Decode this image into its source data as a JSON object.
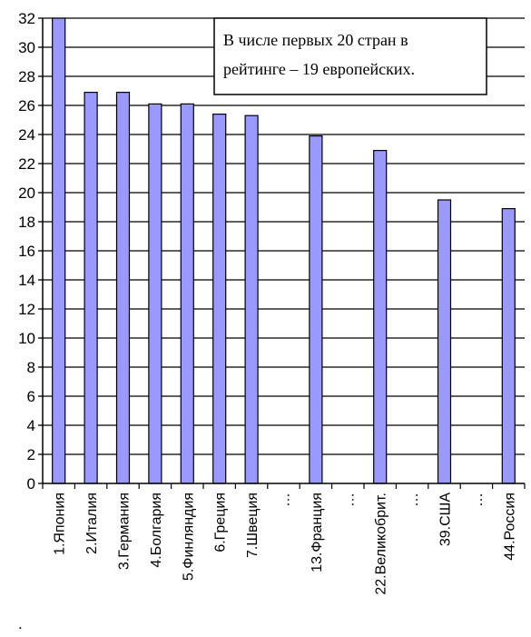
{
  "chart_data": {
    "type": "bar",
    "categories": [
      "1.Япония",
      "2.Италия",
      "3.Германия",
      "4.Болгария",
      "5.Финляндия",
      "6.Греция",
      "7.Швеция",
      "…",
      "13.Франция",
      "…",
      "22.Великобрит.",
      "…",
      "39.США",
      "…",
      "44.Россия"
    ],
    "values": [
      32,
      26.9,
      26.9,
      26.1,
      26.1,
      25.4,
      25.3,
      null,
      23.9,
      null,
      22.9,
      null,
      19.5,
      null,
      18.9
    ],
    "ylim": [
      0,
      32
    ],
    "yticks": [
      0,
      2,
      4,
      6,
      8,
      10,
      12,
      14,
      16,
      18,
      20,
      22,
      24,
      26,
      28,
      30,
      32
    ],
    "grid": true,
    "bar_color": "#9999ff",
    "annotation": [
      "В числе первых 20 стран в",
      "рейтинге – 19 европейских."
    ]
  },
  "footnote": "."
}
